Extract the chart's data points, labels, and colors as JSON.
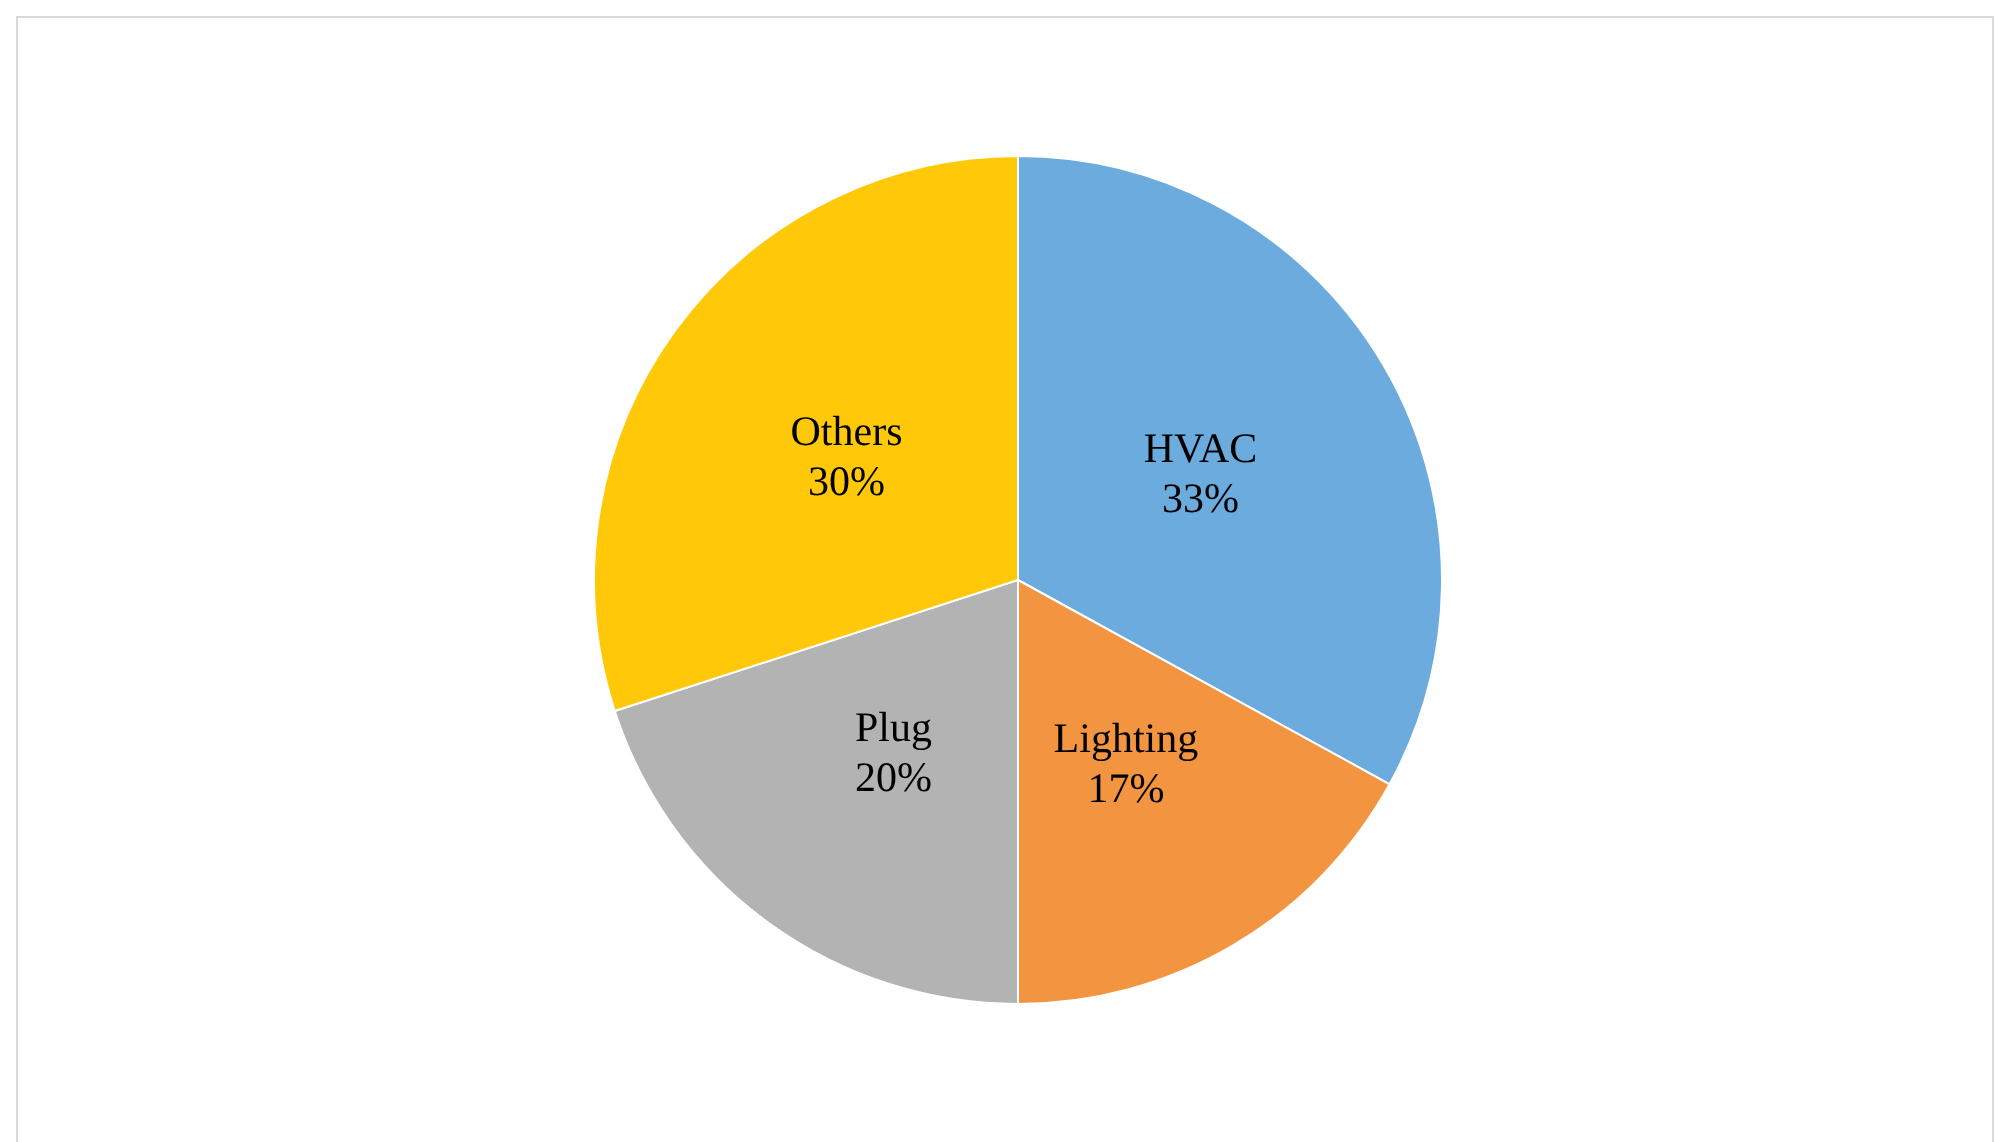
{
  "chart_data": {
    "type": "pie",
    "categories": [
      "HVAC",
      "Lighting",
      "Plug",
      "Others"
    ],
    "values": [
      33,
      17,
      20,
      30
    ],
    "colors": [
      "#6cabdd",
      "#f39441",
      "#b3b3b3",
      "#ffc90a"
    ],
    "value_labels": [
      "33%",
      "17%",
      "20%",
      "30%"
    ]
  }
}
